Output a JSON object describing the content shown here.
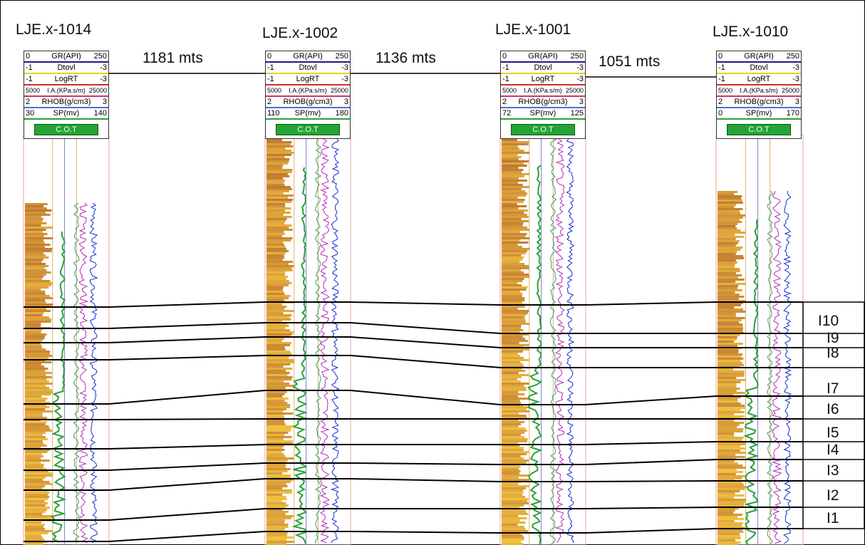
{
  "wells": [
    {
      "name": "LJE.x-1014",
      "header": {
        "gr": {
          "name": "GR(API)",
          "min": "0",
          "max": "250"
        },
        "dt": {
          "name": "Dtovl",
          "min": "-1",
          "max": "-3"
        },
        "rt": {
          "name": "LogRT",
          "min": "-1",
          "max": "-3"
        },
        "ai": {
          "name": "I.A.(KPa.s/m)",
          "min": "5000",
          "max": "25000"
        },
        "rhob": {
          "name": "RHOB(g/cm3)",
          "min": "2",
          "max": "3"
        },
        "sp": {
          "name": "SP(mv)",
          "min": "30",
          "max": "140"
        },
        "cot": "C.O.T"
      }
    },
    {
      "name": "LJE.x-1002",
      "header": {
        "gr": {
          "name": "GR(API)",
          "min": "0",
          "max": "250"
        },
        "dt": {
          "name": "Dtovl",
          "min": "-1",
          "max": "-3"
        },
        "rt": {
          "name": "LogRT",
          "min": "-1",
          "max": "-3"
        },
        "ai": {
          "name": "I.A.(KPa.s/m)",
          "min": "5000",
          "max": "25000"
        },
        "rhob": {
          "name": "RHOB(g/cm3)",
          "min": "2",
          "max": "3"
        },
        "sp": {
          "name": "SP(mv)",
          "min": "110",
          "max": "180"
        },
        "cot": "C.O.T"
      }
    },
    {
      "name": "LJE.x-1001",
      "header": {
        "gr": {
          "name": "GR(API)",
          "min": "0",
          "max": "250"
        },
        "dt": {
          "name": "Dtovl",
          "min": "-1",
          "max": "-3"
        },
        "rt": {
          "name": "LogRT",
          "min": "-1",
          "max": "-3"
        },
        "ai": {
          "name": "I.A.(KPa.s/m)",
          "min": "5000",
          "max": "25000"
        },
        "rhob": {
          "name": "RHOB(g/cm3)",
          "min": "2",
          "max": "3"
        },
        "sp": {
          "name": "SP(mv)",
          "min": "72",
          "max": "125"
        },
        "cot": "C.O.T"
      }
    },
    {
      "name": "LJE.x-1010",
      "header": {
        "gr": {
          "name": "GR(API)",
          "min": "0",
          "max": "250"
        },
        "dt": {
          "name": "Dtovl",
          "min": "-1",
          "max": "-3"
        },
        "rt": {
          "name": "LogRT",
          "min": "-1",
          "max": "-3"
        },
        "ai": {
          "name": "I.A.(KPa.s/m)",
          "min": "5000",
          "max": "25000"
        },
        "rhob": {
          "name": "RHOB(g/cm3)",
          "min": "2",
          "max": "3"
        },
        "sp": {
          "name": "SP(mv)",
          "min": "0",
          "max": "170"
        },
        "cot": "C.O.T"
      }
    }
  ],
  "distances": [
    "1181 mts",
    "1136 mts",
    "1051 mts"
  ],
  "zones": [
    "I10",
    "I9",
    "I8",
    "I7",
    "I6",
    "I5",
    "I4",
    "I3",
    "I2",
    "I1"
  ],
  "colors": {
    "gr": "#1a1a8c",
    "dt": "#e6d21a",
    "rt": "#d42a2a",
    "ai": "#c23a6a",
    "rhob": "#5a6ad0",
    "sp": "#2aa03a",
    "cot": "#22a534",
    "fill_dark": "#a8552c",
    "fill_light": "#f0c040"
  }
}
